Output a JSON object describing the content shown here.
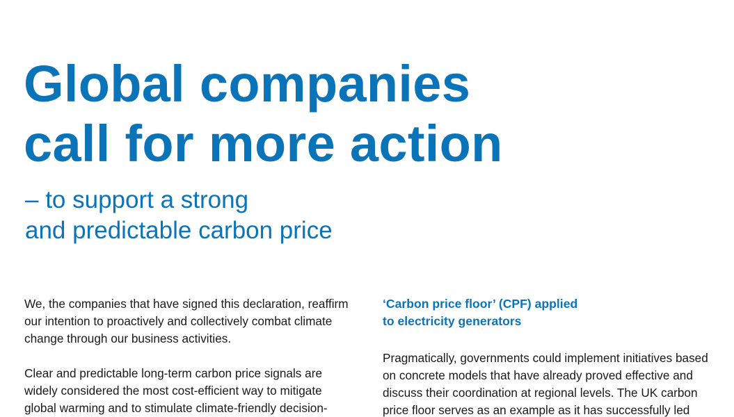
{
  "title": {
    "line1": "Global companies",
    "line2": "call for more action"
  },
  "subtitle": {
    "line1": "– to support a strong",
    "line2": "and predictable carbon price"
  },
  "left_column": {
    "paragraph1": [
      "We, the companies that have signed this declaration, reaffirm",
      "our intention to proactively and collectively combat climate",
      "change through our business activities."
    ],
    "paragraph2": [
      "Clear and predictable long-term carbon price signals are",
      "widely considered the most cost-efficient way to mitigate",
      "global warming and to stimulate climate-friendly decision-"
    ]
  },
  "right_column": {
    "heading": [
      "‘Carbon price floor’ (CPF) applied",
      "to electricity generators"
    ],
    "paragraph1": [
      "Pragmatically, governments could implement initiatives based",
      "on concrete models that have already proved effective and",
      "discuss their coordination at regional levels. The UK carbon",
      "price floor serves as an example as it has successfully led"
    ]
  }
}
